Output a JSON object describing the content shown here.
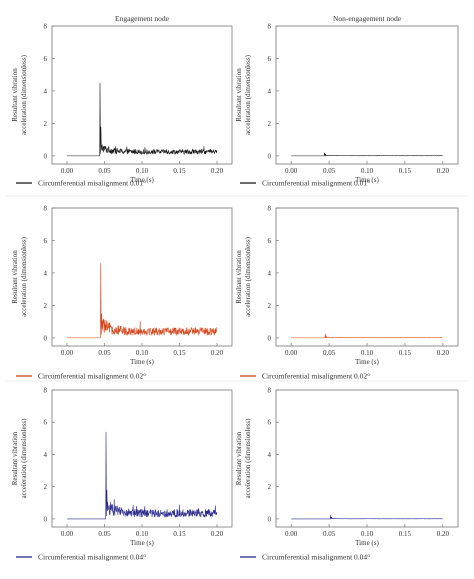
{
  "figure": {
    "column_titles": [
      "Engagement node",
      "Non-engagement node"
    ]
  },
  "chart_data": [
    {
      "type": "line",
      "row": 0,
      "col": 0,
      "title": "Engagement node",
      "xlabel": "Time (s)",
      "ylabel": "Resultant vibration acceleration (dimensionless)",
      "xlim": [
        -0.02,
        0.22
      ],
      "ylim": [
        -0.5,
        8
      ],
      "xticks": [
        "0.00",
        "0.05",
        "0.10",
        "0.15",
        "0.20"
      ],
      "yticks": [
        "0",
        "2",
        "4",
        "6",
        "8"
      ],
      "color": "#1a1a1a",
      "legend": "Circumferential misalignment 0.01°",
      "signal": {
        "onset": 0.044,
        "peak": 4.5,
        "second_peak": 1.8,
        "level": 0.25,
        "noise": 0.15,
        "end": 0.2
      },
      "grid": false
    },
    {
      "type": "line",
      "row": 0,
      "col": 1,
      "title": "Non-engagement node",
      "xlabel": "Time (s)",
      "ylabel": "Resultant vibration acceleration (dimensionless)",
      "xlim": [
        -0.02,
        0.22
      ],
      "ylim": [
        -0.5,
        8
      ],
      "xticks": [
        "0.00",
        "0.05",
        "0.10",
        "0.15",
        "0.20"
      ],
      "yticks": [
        "0",
        "2",
        "4",
        "6",
        "8"
      ],
      "color": "#1a1a1a",
      "legend": "Circumferential misalignment 0.01°",
      "signal": {
        "onset": 0.044,
        "peak": 0.2,
        "second_peak": 0.12,
        "level": 0.01,
        "noise": 0.005,
        "end": 0.2
      },
      "grid": false
    },
    {
      "type": "line",
      "row": 1,
      "col": 0,
      "title": "",
      "xlabel": "Time (s)",
      "ylabel": "Resultant vibration acceleration (dimensionless)",
      "xlim": [
        -0.02,
        0.22
      ],
      "ylim": [
        -0.5,
        8
      ],
      "xticks": [
        "0.00",
        "0.05",
        "0.10",
        "0.15",
        "0.20"
      ],
      "yticks": [
        "0",
        "2",
        "4",
        "6",
        "8"
      ],
      "color": "#d4461b",
      "legend": "Circumferential misalignment 0.02°",
      "signal": {
        "onset": 0.045,
        "peak": 4.6,
        "second_peak": 1.5,
        "level": 0.4,
        "noise": 0.25,
        "end": 0.2
      },
      "grid": false
    },
    {
      "type": "line",
      "row": 1,
      "col": 1,
      "title": "",
      "xlabel": "Time (s)",
      "ylabel": "Resultant vibration acceleration (dimensionless)",
      "xlim": [
        -0.02,
        0.22
      ],
      "ylim": [
        -0.5,
        8
      ],
      "xticks": [
        "0.00",
        "0.05",
        "0.10",
        "0.15",
        "0.20"
      ],
      "yticks": [
        "0",
        "2",
        "4",
        "6",
        "8"
      ],
      "color": "#d4461b",
      "legend": "Circumferential misalignment 0.02°",
      "signal": {
        "onset": 0.045,
        "peak": 0.25,
        "second_peak": 0.12,
        "level": 0.01,
        "noise": 0.005,
        "end": 0.2
      },
      "grid": false
    },
    {
      "type": "line",
      "row": 2,
      "col": 0,
      "title": "",
      "xlabel": "Time (s)",
      "ylabel": "Resultant vibration acceleration (dimensionless)",
      "xlim": [
        -0.02,
        0.22
      ],
      "ylim": [
        -0.5,
        8
      ],
      "xticks": [
        "0.00",
        "0.05",
        "0.10",
        "0.15",
        "0.20"
      ],
      "yticks": [
        "0",
        "2",
        "4",
        "6",
        "8"
      ],
      "color": "#2a2a8c",
      "legend": "Circumferential misalignment 0.04°",
      "signal": {
        "onset": 0.052,
        "peak": 5.4,
        "second_peak": 1.8,
        "level": 0.35,
        "noise": 0.25,
        "end": 0.2
      },
      "grid": false
    },
    {
      "type": "line",
      "row": 2,
      "col": 1,
      "title": "",
      "xlabel": "Time (s)",
      "ylabel": "Resultant vibration acceleration (dimensionless)",
      "xlim": [
        -0.02,
        0.22
      ],
      "ylim": [
        -0.5,
        8
      ],
      "xticks": [
        "0.00",
        "0.05",
        "0.10",
        "0.15",
        "0.20"
      ],
      "yticks": [
        "0",
        "2",
        "4",
        "6",
        "8"
      ],
      "color": "#2a2a8c",
      "legend": "Circumferential misalignment 0.04°",
      "signal": {
        "onset": 0.052,
        "peak": 0.25,
        "second_peak": 0.12,
        "level": 0.01,
        "noise": 0.005,
        "end": 0.2
      },
      "grid": false
    }
  ]
}
